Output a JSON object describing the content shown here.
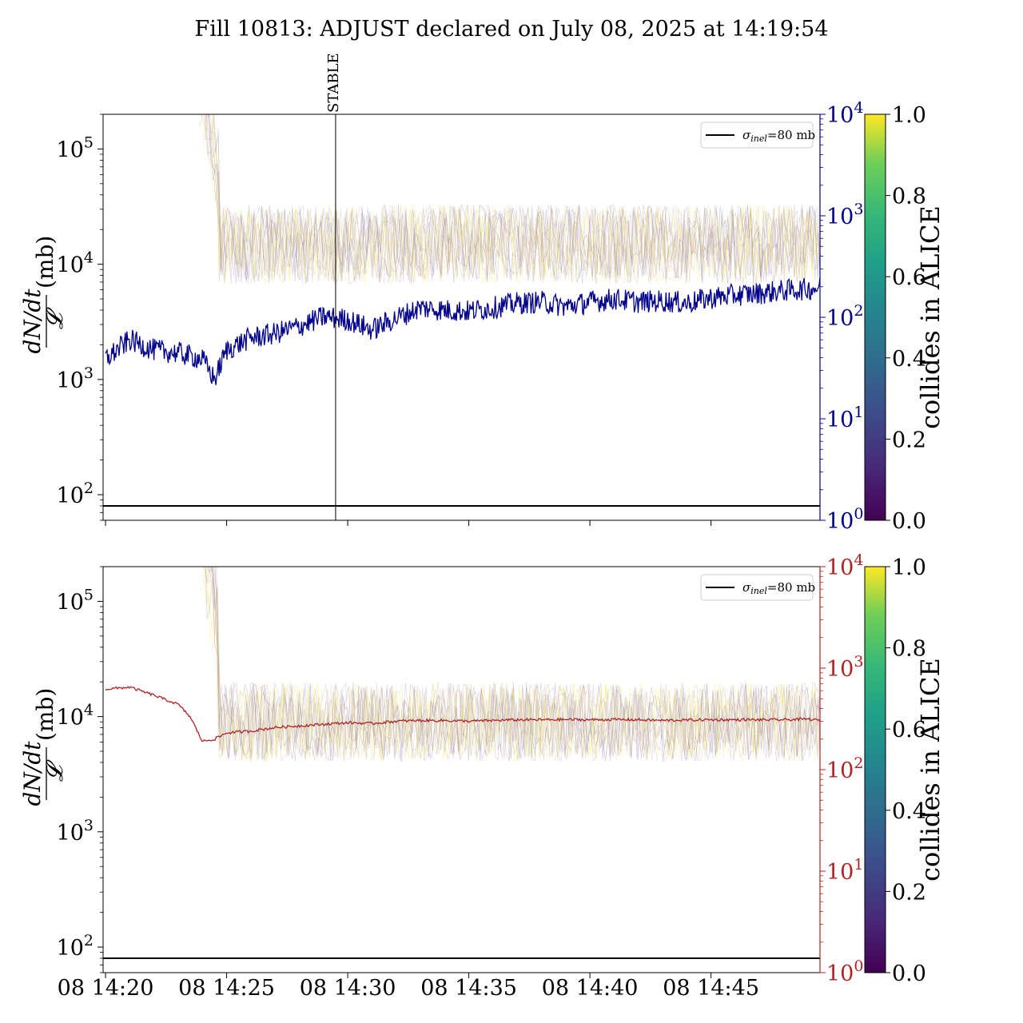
{
  "title": "Fill 10813: ADJUST declared on July 08, 2025 at 14:19:54",
  "colors": {
    "top_series": "#00008b",
    "bottom_series": "#b22222",
    "top_right_axis": "#00008b",
    "bottom_right_axis": "#b22222",
    "reference_line": "#000000"
  },
  "chart_data": [
    {
      "type": "line",
      "panel": "top",
      "ylabel_left": "dN/dt / 𝓛 (mb)",
      "yscale_left": "log",
      "ylim_left": [
        60,
        200000
      ],
      "yticks_left": [
        "10^2",
        "10^3",
        "10^4",
        "10^5"
      ],
      "yscale_right": "log",
      "ylim_right": [
        1,
        10000
      ],
      "yticks_right": [
        "10^0",
        "10^1",
        "10^2",
        "10^3",
        "10^4"
      ],
      "xlim": [
        "2025-07-08 14:19:54",
        "2025-07-08 14:49:30"
      ],
      "xticks": [
        "08 14:20",
        "08 14:25",
        "08 14:30",
        "08 14:35",
        "08 14:40",
        "08 14:45"
      ],
      "vline": {
        "x": "2025-07-08 14:29:30",
        "label": "STABLE"
      },
      "hline": {
        "y": 80,
        "label": "σinel=80 mb"
      },
      "legend": {
        "placement": "top-right",
        "entries": [
          "σinel=80 mb"
        ]
      },
      "series": [
        {
          "axis": "left",
          "x": [
            "14:20",
            "14:21",
            "14:22",
            "14:23",
            "14:24",
            "14:24:30",
            "14:25",
            "14:26",
            "14:27",
            "14:28",
            "14:29",
            "14:30",
            "14:31",
            "14:32",
            "14:33",
            "14:34",
            "14:35",
            "14:36",
            "14:37",
            "14:38",
            "14:39",
            "14:40",
            "14:41",
            "14:42",
            "14:43",
            "14:44",
            "14:45",
            "14:46",
            "14:47",
            "14:48",
            "14:49",
            "14:49:30"
          ],
          "y": [
            1500,
            2200,
            1800,
            1700,
            1500,
            1000,
            1800,
            2300,
            2500,
            2900,
            3500,
            3300,
            2700,
            3400,
            4200,
            4000,
            3900,
            4200,
            4600,
            4700,
            4300,
            4700,
            5000,
            4700,
            4800,
            4600,
            5100,
            5400,
            5600,
            5900,
            6100,
            6300
          ]
        }
      ]
    },
    {
      "type": "line",
      "panel": "bottom",
      "ylabel_left": "dN/dt / 𝓛 (mb)",
      "yscale_left": "log",
      "ylim_left": [
        60,
        200000
      ],
      "yticks_left": [
        "10^2",
        "10^3",
        "10^4",
        "10^5"
      ],
      "yscale_right": "log",
      "ylim_right": [
        1,
        10000
      ],
      "yticks_right": [
        "10^0",
        "10^1",
        "10^2",
        "10^3",
        "10^4"
      ],
      "xlim": [
        "2025-07-08 14:19:54",
        "2025-07-08 14:49:30"
      ],
      "xticks": [
        "08 14:20",
        "08 14:25",
        "08 14:30",
        "08 14:35",
        "08 14:40",
        "08 14:45"
      ],
      "hline": {
        "y": 80,
        "label": "σinel=80 mb"
      },
      "legend": {
        "placement": "top-right",
        "entries": [
          "σinel=80 mb"
        ]
      },
      "series": [
        {
          "axis": "right",
          "x": [
            "14:20",
            "14:21",
            "14:22",
            "14:23",
            "14:23:30",
            "14:24",
            "14:24:30",
            "14:25",
            "14:26",
            "14:27",
            "14:28",
            "14:29",
            "14:30",
            "14:31",
            "14:32",
            "14:33",
            "14:34",
            "14:35",
            "14:36",
            "14:37",
            "14:38",
            "14:39",
            "14:40",
            "14:41",
            "14:42",
            "14:43",
            "14:44",
            "14:45",
            "14:46",
            "14:47",
            "14:48",
            "14:49",
            "14:49:30"
          ],
          "y": [
            620,
            650,
            540,
            440,
            330,
            190,
            200,
            230,
            240,
            260,
            270,
            280,
            290,
            285,
            300,
            305,
            305,
            300,
            305,
            310,
            310,
            312,
            310,
            312,
            310,
            305,
            308,
            310,
            310,
            310,
            310,
            315,
            305
          ]
        }
      ]
    }
  ],
  "colorbar": {
    "label": "collides in ALICE",
    "range": [
      0.0,
      1.0
    ],
    "ticks": [
      "0.0",
      "0.2",
      "0.4",
      "0.6",
      "0.8",
      "1.0"
    ],
    "colormap": "viridis"
  }
}
